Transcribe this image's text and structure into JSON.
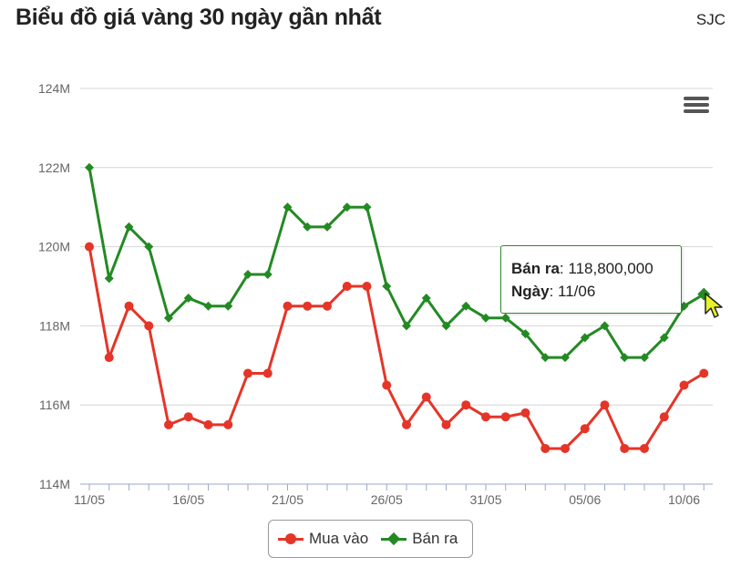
{
  "title": "Biểu đồ giá vàng 30 ngày gần nhất",
  "brand": "SJC",
  "chart_data": {
    "type": "line",
    "x": [
      "11/05",
      "12/05",
      "13/05",
      "14/05",
      "15/05",
      "16/05",
      "17/05",
      "18/05",
      "19/05",
      "20/05",
      "21/05",
      "22/05",
      "23/05",
      "24/05",
      "25/05",
      "26/05",
      "27/05",
      "28/05",
      "29/05",
      "30/05",
      "31/05",
      "01/06",
      "02/06",
      "03/06",
      "04/06",
      "05/06",
      "06/06",
      "07/06",
      "08/06",
      "09/06",
      "10/06",
      "11/06"
    ],
    "x_tick_labels": [
      "11/05",
      "16/05",
      "21/05",
      "26/05",
      "31/05",
      "05/06",
      "10/06"
    ],
    "x_tick_every": 5,
    "y_ticks": [
      114,
      116,
      118,
      120,
      122,
      124
    ],
    "y_tick_labels": [
      "114M",
      "116M",
      "118M",
      "120M",
      "122M",
      "124M"
    ],
    "ylim": [
      114,
      124
    ],
    "y_unit": "M",
    "grid": true,
    "legend_position": "bottom-center",
    "series": [
      {
        "name": "Mua vào",
        "color": "#e53528",
        "marker": "circle",
        "values": [
          120.0,
          117.2,
          118.5,
          118.0,
          115.5,
          115.7,
          115.5,
          115.5,
          116.8,
          116.8,
          118.5,
          118.5,
          118.5,
          119.0,
          119.0,
          116.5,
          115.5,
          116.2,
          115.5,
          116.0,
          115.7,
          115.7,
          115.8,
          114.9,
          114.9,
          115.4,
          116.0,
          114.9,
          114.9,
          115.7,
          116.5,
          116.8
        ]
      },
      {
        "name": "Bán ra",
        "color": "#238a23",
        "marker": "diamond",
        "values": [
          122.0,
          119.2,
          120.5,
          120.0,
          118.2,
          118.7,
          118.5,
          118.5,
          119.3,
          119.3,
          121.0,
          120.5,
          120.5,
          121.0,
          121.0,
          119.0,
          118.0,
          118.7,
          118.0,
          118.5,
          118.2,
          118.2,
          117.8,
          117.2,
          117.2,
          117.7,
          118.0,
          117.2,
          117.2,
          117.7,
          118.5,
          118.8
        ]
      }
    ]
  },
  "tooltip": {
    "series_label": "Bán ra",
    "value": "118,800,000",
    "date_label": "Ngày",
    "date": "11/06"
  },
  "menu_icon": "hamburger-menu-icon",
  "cursor_icon": "mouse-pointer-icon"
}
